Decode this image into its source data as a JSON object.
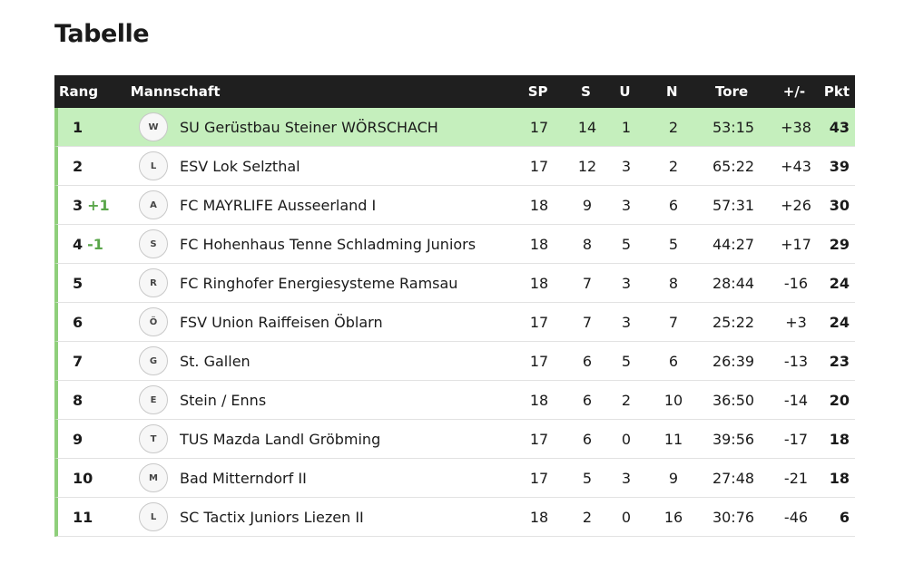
{
  "page": {
    "title": "Tabelle"
  },
  "table": {
    "headers": {
      "rank": "Rang",
      "team": "Mannschaft",
      "sp": "SP",
      "s": "S",
      "u": "U",
      "n": "N",
      "tore": "Tore",
      "diff": "+/-",
      "pkt": "Pkt"
    },
    "rows": [
      {
        "rank": "1",
        "trend": "",
        "team": "SU Gerüstbau Steiner WÖRSCHACH",
        "logo_icon": "wörschach-crest-icon",
        "sp": "17",
        "s": "14",
        "u": "1",
        "n": "2",
        "tore": "53:15",
        "diff": "+38",
        "pkt": "43"
      },
      {
        "rank": "2",
        "trend": "",
        "team": "ESV Lok Selzthal",
        "logo_icon": "selzthal-crest-icon",
        "sp": "17",
        "s": "12",
        "u": "3",
        "n": "2",
        "tore": "65:22",
        "diff": "+43",
        "pkt": "39"
      },
      {
        "rank": "3",
        "trend": "+1",
        "team": "FC MAYRLIFE Ausseerland I",
        "logo_icon": "ausseerland-crest-icon",
        "sp": "18",
        "s": "9",
        "u": "3",
        "n": "6",
        "tore": "57:31",
        "diff": "+26",
        "pkt": "30"
      },
      {
        "rank": "4",
        "trend": "-1",
        "team": "FC Hohenhaus Tenne Schladming Juniors",
        "logo_icon": "schladming-crest-icon",
        "sp": "18",
        "s": "8",
        "u": "5",
        "n": "5",
        "tore": "44:27",
        "diff": "+17",
        "pkt": "29"
      },
      {
        "rank": "5",
        "trend": "",
        "team": "FC Ringhofer Energiesysteme Ramsau",
        "logo_icon": "ramsau-crest-icon",
        "sp": "18",
        "s": "7",
        "u": "3",
        "n": "8",
        "tore": "28:44",
        "diff": "-16",
        "pkt": "24"
      },
      {
        "rank": "6",
        "trend": "",
        "team": "FSV Union Raiffeisen Öblarn",
        "logo_icon": "öblarn-crest-icon",
        "sp": "17",
        "s": "7",
        "u": "3",
        "n": "7",
        "tore": "25:22",
        "diff": "+3",
        "pkt": "24"
      },
      {
        "rank": "7",
        "trend": "",
        "team": "St. Gallen",
        "logo_icon": "st-gallen-crest-icon",
        "sp": "17",
        "s": "6",
        "u": "5",
        "n": "6",
        "tore": "26:39",
        "diff": "-13",
        "pkt": "23"
      },
      {
        "rank": "8",
        "trend": "",
        "team": "Stein / Enns",
        "logo_icon": "stein-enns-crest-icon",
        "sp": "18",
        "s": "6",
        "u": "2",
        "n": "10",
        "tore": "36:50",
        "diff": "-14",
        "pkt": "20"
      },
      {
        "rank": "9",
        "trend": "",
        "team": "TUS Mazda Landl Gröbming",
        "logo_icon": "gröbming-crest-icon",
        "sp": "17",
        "s": "6",
        "u": "0",
        "n": "11",
        "tore": "39:56",
        "diff": "-17",
        "pkt": "18"
      },
      {
        "rank": "10",
        "trend": "",
        "team": "Bad Mitterndorf II",
        "logo_icon": "bad-mitterndorf-crest-icon",
        "sp": "17",
        "s": "5",
        "u": "3",
        "n": "9",
        "tore": "27:48",
        "diff": "-21",
        "pkt": "18"
      },
      {
        "rank": "11",
        "trend": "",
        "team": "SC Tactix Juniors Liezen II",
        "logo_icon": "liezen-crest-icon",
        "sp": "18",
        "s": "2",
        "u": "0",
        "n": "16",
        "tore": "30:76",
        "diff": "-46",
        "pkt": "6"
      }
    ]
  },
  "colors": {
    "header_bg": "#1f1f1f",
    "leader_bg": "#c5efbd",
    "row_accent": "#8fcf7b",
    "trend_up": "#5aa64a",
    "trend_down": "#5aa64a"
  }
}
